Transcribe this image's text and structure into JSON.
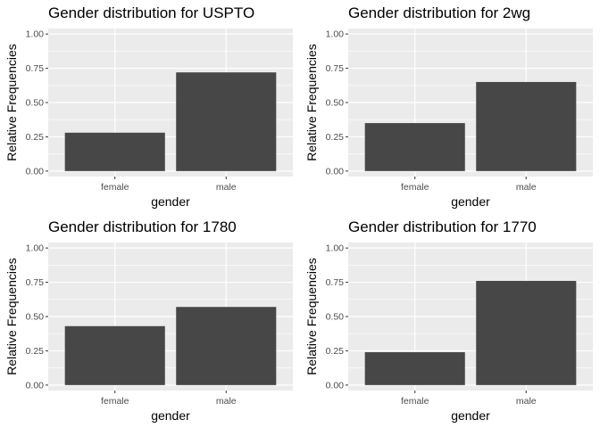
{
  "chart_data": [
    {
      "type": "bar",
      "title": "Gender distribution for USPTO",
      "xlabel": "gender",
      "ylabel": "Relative Frequencies",
      "categories": [
        "female",
        "male"
      ],
      "values": [
        0.28,
        0.72
      ],
      "ylim": [
        -0.04,
        1.04
      ],
      "yticks": [
        0,
        0.25,
        0.5,
        0.75,
        1
      ],
      "ytick_labels": [
        "0.00",
        "0.25",
        "0.50",
        "0.75",
        "1.00"
      ],
      "grid": true,
      "colors": {
        "bar": "#474747",
        "panel": "#ebebeb",
        "grid": "#ffffff"
      }
    },
    {
      "type": "bar",
      "title": "Gender distribution for 2wg",
      "xlabel": "gender",
      "ylabel": "Relative Frequencies",
      "categories": [
        "female",
        "male"
      ],
      "values": [
        0.35,
        0.65
      ],
      "ylim": [
        -0.04,
        1.04
      ],
      "yticks": [
        0,
        0.25,
        0.5,
        0.75,
        1
      ],
      "ytick_labels": [
        "0.00",
        "0.25",
        "0.50",
        "0.75",
        "1.00"
      ],
      "grid": true,
      "colors": {
        "bar": "#474747",
        "panel": "#ebebeb",
        "grid": "#ffffff"
      }
    },
    {
      "type": "bar",
      "title": "Gender distribution for 1780",
      "xlabel": "gender",
      "ylabel": "Relative Frequencies",
      "categories": [
        "female",
        "male"
      ],
      "values": [
        0.43,
        0.57
      ],
      "ylim": [
        -0.04,
        1.04
      ],
      "yticks": [
        0,
        0.25,
        0.5,
        0.75,
        1
      ],
      "ytick_labels": [
        "0.00",
        "0.25",
        "0.50",
        "0.75",
        "1.00"
      ],
      "grid": true,
      "colors": {
        "bar": "#474747",
        "panel": "#ebebeb",
        "grid": "#ffffff"
      }
    },
    {
      "type": "bar",
      "title": "Gender distribution for 1770",
      "xlabel": "gender",
      "ylabel": "Relative Frequencies",
      "categories": [
        "female",
        "male"
      ],
      "values": [
        0.24,
        0.76
      ],
      "ylim": [
        -0.04,
        1.04
      ],
      "yticks": [
        0,
        0.25,
        0.5,
        0.75,
        1
      ],
      "ytick_labels": [
        "0.00",
        "0.25",
        "0.50",
        "0.75",
        "1.00"
      ],
      "grid": true,
      "colors": {
        "bar": "#474747",
        "panel": "#ebebeb",
        "grid": "#ffffff"
      }
    }
  ]
}
